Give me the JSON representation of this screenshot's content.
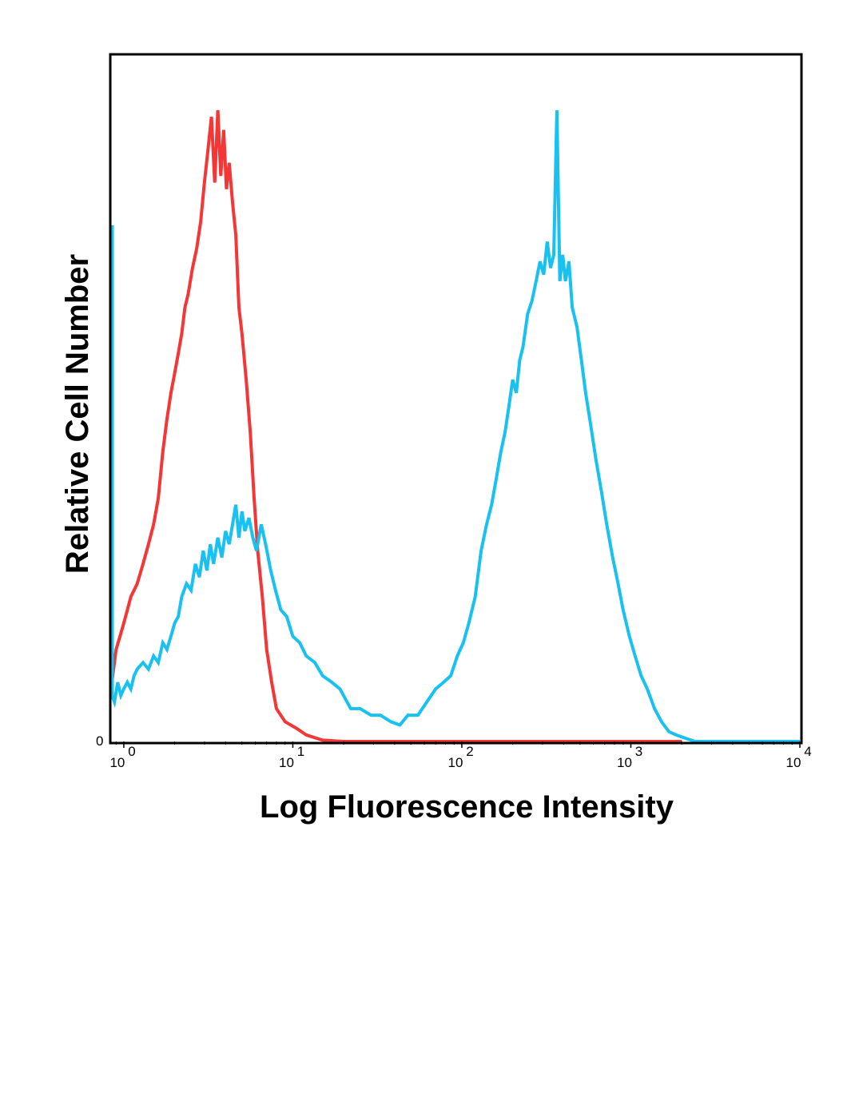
{
  "chart_data": {
    "type": "line",
    "xlabel": "Log Fluorescence Intensity",
    "ylabel": "Relative Cell Number",
    "xscale": "log",
    "xlim": [
      0.85,
      10000
    ],
    "ylim": [
      0,
      1
    ],
    "y_tick_label": "0",
    "x_ticks": [
      {
        "value": 1,
        "base": "10",
        "exp": "0"
      },
      {
        "value": 10,
        "base": "10",
        "exp": "1"
      },
      {
        "value": 100,
        "base": "10",
        "exp": "2"
      },
      {
        "value": 1000,
        "base": "10",
        "exp": "3"
      },
      {
        "value": 10000,
        "base": "10",
        "exp": "4"
      }
    ],
    "grid": false,
    "legend": "none",
    "series": [
      {
        "color": "#f43636",
        "points": [
          [
            0.85,
            0.09
          ],
          [
            0.9,
            0.14
          ],
          [
            0.95,
            0.16
          ],
          [
            1.0,
            0.18
          ],
          [
            1.05,
            0.2
          ],
          [
            1.1,
            0.22
          ],
          [
            1.15,
            0.23
          ],
          [
            1.2,
            0.24
          ],
          [
            1.3,
            0.27
          ],
          [
            1.4,
            0.3
          ],
          [
            1.5,
            0.33
          ],
          [
            1.6,
            0.37
          ],
          [
            1.7,
            0.44
          ],
          [
            1.8,
            0.49
          ],
          [
            1.9,
            0.53
          ],
          [
            2.0,
            0.56
          ],
          [
            2.1,
            0.59
          ],
          [
            2.2,
            0.62
          ],
          [
            2.3,
            0.66
          ],
          [
            2.4,
            0.68
          ],
          [
            2.55,
            0.72
          ],
          [
            2.7,
            0.75
          ],
          [
            2.85,
            0.79
          ],
          [
            3.0,
            0.85
          ],
          [
            3.15,
            0.9
          ],
          [
            3.3,
            0.95
          ],
          [
            3.45,
            0.85
          ],
          [
            3.6,
            0.96
          ],
          [
            3.75,
            0.86
          ],
          [
            3.9,
            0.93
          ],
          [
            4.05,
            0.84
          ],
          [
            4.2,
            0.88
          ],
          [
            4.4,
            0.82
          ],
          [
            4.6,
            0.77
          ],
          [
            4.8,
            0.66
          ],
          [
            5.0,
            0.62
          ],
          [
            5.3,
            0.55
          ],
          [
            5.6,
            0.47
          ],
          [
            5.9,
            0.37
          ],
          [
            6.2,
            0.29
          ],
          [
            6.6,
            0.22
          ],
          [
            7.0,
            0.14
          ],
          [
            7.5,
            0.09
          ],
          [
            8.0,
            0.05
          ],
          [
            9.0,
            0.03
          ],
          [
            10.5,
            0.02
          ],
          [
            12.0,
            0.01
          ],
          [
            15.0,
            0.002
          ],
          [
            20.0,
            0.0
          ],
          [
            100.0,
            0.0
          ],
          [
            1000.0,
            0.0
          ],
          [
            2000.0,
            0.0
          ]
        ]
      },
      {
        "color": "#19c1f0",
        "points": [
          [
            0.85,
            0.07
          ],
          [
            0.88,
            0.06
          ],
          [
            0.92,
            0.09
          ],
          [
            0.96,
            0.07
          ],
          [
            1.0,
            0.08
          ],
          [
            1.05,
            0.09
          ],
          [
            1.1,
            0.08
          ],
          [
            1.15,
            0.1
          ],
          [
            1.2,
            0.11
          ],
          [
            1.3,
            0.12
          ],
          [
            1.4,
            0.11
          ],
          [
            1.5,
            0.13
          ],
          [
            1.6,
            0.12
          ],
          [
            1.7,
            0.15
          ],
          [
            1.8,
            0.14
          ],
          [
            1.9,
            0.16
          ],
          [
            2.0,
            0.18
          ],
          [
            2.1,
            0.19
          ],
          [
            2.2,
            0.22
          ],
          [
            2.35,
            0.24
          ],
          [
            2.5,
            0.23
          ],
          [
            2.65,
            0.27
          ],
          [
            2.8,
            0.25
          ],
          [
            2.95,
            0.29
          ],
          [
            3.1,
            0.26
          ],
          [
            3.25,
            0.3
          ],
          [
            3.4,
            0.27
          ],
          [
            3.6,
            0.31
          ],
          [
            3.8,
            0.28
          ],
          [
            4.0,
            0.32
          ],
          [
            4.2,
            0.3
          ],
          [
            4.4,
            0.33
          ],
          [
            4.6,
            0.36
          ],
          [
            4.8,
            0.31
          ],
          [
            5.0,
            0.35
          ],
          [
            5.2,
            0.32
          ],
          [
            5.5,
            0.34
          ],
          [
            5.8,
            0.31
          ],
          [
            6.1,
            0.29
          ],
          [
            6.5,
            0.33
          ],
          [
            6.9,
            0.3
          ],
          [
            7.4,
            0.26
          ],
          [
            7.9,
            0.23
          ],
          [
            8.5,
            0.2
          ],
          [
            9.2,
            0.19
          ],
          [
            10.0,
            0.16
          ],
          [
            11.0,
            0.15
          ],
          [
            12.0,
            0.13
          ],
          [
            13.5,
            0.12
          ],
          [
            15.0,
            0.1
          ],
          [
            17.0,
            0.09
          ],
          [
            19.0,
            0.08
          ],
          [
            22.0,
            0.05
          ],
          [
            25.0,
            0.05
          ],
          [
            29.0,
            0.04
          ],
          [
            33.0,
            0.04
          ],
          [
            38.0,
            0.03
          ],
          [
            43.0,
            0.025
          ],
          [
            48.0,
            0.04
          ],
          [
            55.0,
            0.04
          ],
          [
            62.0,
            0.06
          ],
          [
            70.0,
            0.08
          ],
          [
            78.0,
            0.09
          ],
          [
            86.0,
            0.1
          ],
          [
            94.0,
            0.13
          ],
          [
            102.0,
            0.15
          ],
          [
            110.0,
            0.18
          ],
          [
            120.0,
            0.22
          ],
          [
            130.0,
            0.29
          ],
          [
            140.0,
            0.33
          ],
          [
            150.0,
            0.36
          ],
          [
            160.0,
            0.4
          ],
          [
            170.0,
            0.44
          ],
          [
            180.0,
            0.47
          ],
          [
            190.0,
            0.51
          ],
          [
            200.0,
            0.55
          ],
          [
            210.0,
            0.53
          ],
          [
            220.0,
            0.58
          ],
          [
            230.0,
            0.6
          ],
          [
            245.0,
            0.65
          ],
          [
            260.0,
            0.67
          ],
          [
            275.0,
            0.7
          ],
          [
            290.0,
            0.73
          ],
          [
            305.0,
            0.71
          ],
          [
            320.0,
            0.76
          ],
          [
            335.0,
            0.72
          ],
          [
            350.0,
            0.74
          ],
          [
            365.0,
            0.96
          ],
          [
            380.0,
            0.7
          ],
          [
            395.0,
            0.74
          ],
          [
            410.0,
            0.7
          ],
          [
            430.0,
            0.73
          ],
          [
            450.0,
            0.66
          ],
          [
            480.0,
            0.63
          ],
          [
            510.0,
            0.58
          ],
          [
            540.0,
            0.53
          ],
          [
            580.0,
            0.48
          ],
          [
            620.0,
            0.43
          ],
          [
            670.0,
            0.38
          ],
          [
            720.0,
            0.33
          ],
          [
            780.0,
            0.28
          ],
          [
            840.0,
            0.24
          ],
          [
            900.0,
            0.2
          ],
          [
            980.0,
            0.16
          ],
          [
            1060.0,
            0.13
          ],
          [
            1150.0,
            0.1
          ],
          [
            1250.0,
            0.08
          ],
          [
            1380.0,
            0.05
          ],
          [
            1520.0,
            0.03
          ],
          [
            1680.0,
            0.015
          ],
          [
            1850.0,
            0.01
          ],
          [
            2100.0,
            0.005
          ],
          [
            2400.0,
            0.0
          ],
          [
            3000.0,
            0.0
          ],
          [
            5000.0,
            0.0
          ],
          [
            10000.0,
            0.0
          ]
        ]
      }
    ]
  }
}
